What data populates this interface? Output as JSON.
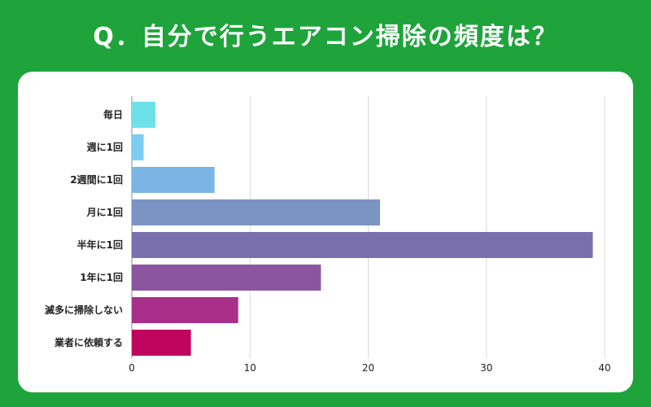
{
  "title": "Q．自分で行うエアコン掃除の頻度は？",
  "chart_data": {
    "type": "bar",
    "orientation": "horizontal",
    "categories": [
      "毎日",
      "週に1回",
      "2週間に1回",
      "月に1回",
      "半年に1回",
      "1年に1回",
      "滅多に掃除しない",
      "業者に依頼する"
    ],
    "values": [
      2,
      1,
      7,
      21,
      39,
      16,
      9,
      5
    ],
    "colors": [
      "#6ee0ea",
      "#7ccdf2",
      "#7ab5e6",
      "#7b94c4",
      "#7a70ad",
      "#8c55a0",
      "#a8308a",
      "#c0055f"
    ],
    "xlim": [
      0,
      40
    ],
    "xticks": [
      0,
      10,
      20,
      30,
      40
    ],
    "grid": true
  }
}
